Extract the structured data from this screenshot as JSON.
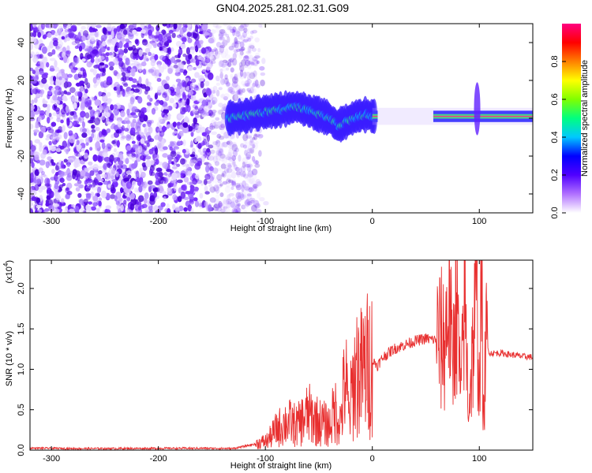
{
  "figure_title": "GN04.2025.281.02.31.G09",
  "chart_data": [
    {
      "type": "heatmap",
      "title": "GN04.2025.281.02.31.G09",
      "xlabel": "Height of straight line (km)",
      "ylabel": "Frequency (Hz)",
      "xlim": [
        -320,
        150
      ],
      "ylim": [
        -50,
        50
      ],
      "xticks": [
        -300,
        -200,
        -100,
        0,
        100
      ],
      "xtick_labels": [
        "-300",
        "-200",
        "-100",
        "0",
        "100"
      ],
      "yticks": [
        -40,
        -20,
        0,
        20,
        40
      ],
      "ytick_labels": [
        "-40",
        "-20",
        "0",
        "20",
        "40"
      ],
      "colorbar": {
        "label": "Normalized spectral amplitude",
        "range": [
          0.0,
          1.0
        ],
        "ticks": [
          0.0,
          0.2,
          0.4,
          0.6,
          0.8
        ],
        "tick_labels": [
          "0.0",
          "0.2",
          "0.4",
          "0.6",
          "0.8"
        ],
        "colors": [
          "#ffffff",
          "#b070ff",
          "#5000ff",
          "#0000ff",
          "#00c8ff",
          "#00ff80",
          "#80ff00",
          "#ffff00",
          "#ff8000",
          "#ff0000",
          "#ff0080"
        ]
      },
      "noise_region_x": [
        -320,
        -115
      ],
      "signal_band_center": [
        [
          -135,
          0
        ],
        [
          -120,
          1
        ],
        [
          -105,
          3
        ],
        [
          -90,
          4
        ],
        [
          -80,
          5
        ],
        [
          -70,
          6
        ],
        [
          -60,
          4
        ],
        [
          -50,
          2
        ],
        [
          -40,
          0
        ],
        [
          -33,
          -4
        ],
        [
          -25,
          -2
        ],
        [
          -15,
          1
        ],
        [
          -5,
          2
        ],
        [
          0,
          1
        ],
        [
          150,
          1
        ]
      ],
      "signal_gap_x": [
        5,
        57
      ]
    },
    {
      "type": "line",
      "xlabel": "Height of straight line (km)",
      "ylabel": "SNR (10 * v/v)",
      "multiplier_label": "(x10",
      "multiplier_exponent": "4",
      "multiplier_close": ")",
      "xlim": [
        -320,
        150
      ],
      "ylim": [
        0,
        23500
      ],
      "xticks": [
        -300,
        -200,
        -100,
        0,
        100
      ],
      "xtick_labels": [
        "-300",
        "-200",
        "-100",
        "0",
        "100"
      ],
      "yticks": [
        0,
        5000,
        10000,
        15000,
        20000
      ],
      "ytick_labels": [
        "0.0",
        "0.5",
        "1.0",
        "1.5",
        "2.0"
      ],
      "color": "#e83030",
      "series": [
        {
          "name": "SNR",
          "x": [
            -320,
            -280,
            -240,
            -200,
            -160,
            -130,
            -115,
            -105,
            -98,
            -90,
            -80,
            -70,
            -60,
            -50,
            -40,
            -35,
            -30,
            -25,
            -22,
            -18,
            -15,
            -10,
            -5,
            0,
            5,
            10,
            20,
            30,
            40,
            50,
            60,
            68,
            72,
            75,
            78,
            80,
            83,
            86,
            90,
            95,
            98,
            100,
            102,
            104,
            106,
            110,
            120,
            130,
            140,
            150
          ],
          "y": [
            250,
            200,
            200,
            220,
            230,
            200,
            600,
            900,
            1200,
            2500,
            3500,
            3000,
            4500,
            3500,
            3000,
            5000,
            3500,
            9000,
            4000,
            8000,
            10000,
            9500,
            10500,
            11000,
            10500,
            11500,
            12500,
            13000,
            13500,
            13800,
            13600,
            13400,
            20000,
            9000,
            21500,
            14500,
            6000,
            20000,
            5000,
            14500,
            18000,
            8000,
            21000,
            3000,
            13000,
            12000,
            12000,
            11800,
            11600,
            11500
          ]
        }
      ]
    }
  ]
}
